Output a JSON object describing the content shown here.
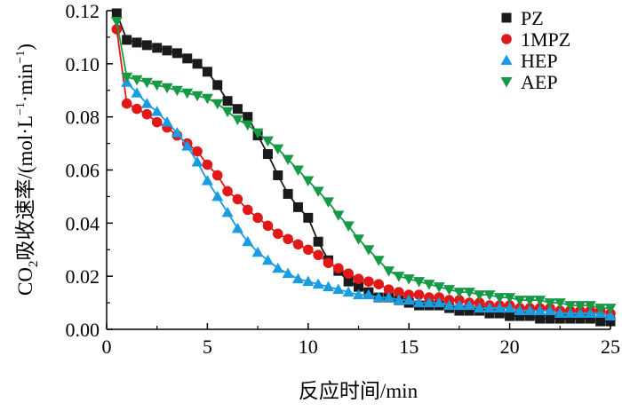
{
  "chart_data": {
    "type": "line",
    "title": "",
    "xlabel": "反应时间/min",
    "ylabel_main": "CO",
    "ylabel_sub": "2",
    "ylabel_rest": "吸收速率/(mol·L",
    "ylabel_sup1": "−1",
    "ylabel_mid": "·min",
    "ylabel_sup2": "−1",
    "ylabel_close": ")",
    "xlim": [
      0,
      25
    ],
    "ylim": [
      0,
      0.12
    ],
    "xticks": [
      0,
      5,
      10,
      15,
      20,
      25
    ],
    "xtick_labels": [
      "0",
      "5",
      "10",
      "15",
      "20",
      "25"
    ],
    "yticks": [
      0,
      0.02,
      0.04,
      0.06,
      0.08,
      0.1,
      0.12
    ],
    "ytick_labels": [
      "0.00",
      "0.02",
      "0.04",
      "0.06",
      "0.08",
      "0.10",
      "0.12"
    ],
    "legend_position": "top-right",
    "series": [
      {
        "name": "PZ",
        "color": "#1a1a1a",
        "marker": "square",
        "x": [
          0.5,
          1,
          1.5,
          2,
          2.5,
          3,
          3.5,
          4,
          4.5,
          5,
          5.5,
          6,
          6.5,
          7,
          7.5,
          8,
          8.5,
          9,
          9.5,
          10,
          10.5,
          11,
          11.5,
          12,
          12.5,
          13,
          13.5,
          14,
          14.5,
          15,
          15.5,
          16,
          16.5,
          17,
          17.5,
          18,
          18.5,
          19,
          19.5,
          20,
          20.5,
          21,
          21.5,
          22,
          22.5,
          23,
          23.5,
          24,
          24.5,
          25
        ],
        "y": [
          0.119,
          0.109,
          0.108,
          0.107,
          0.106,
          0.105,
          0.104,
          0.102,
          0.1,
          0.097,
          0.092,
          0.086,
          0.083,
          0.08,
          0.073,
          0.066,
          0.058,
          0.051,
          0.046,
          0.042,
          0.033,
          0.026,
          0.022,
          0.018,
          0.016,
          0.014,
          0.012,
          0.012,
          0.011,
          0.01,
          0.009,
          0.009,
          0.009,
          0.008,
          0.007,
          0.007,
          0.007,
          0.006,
          0.006,
          0.005,
          0.005,
          0.005,
          0.004,
          0.004,
          0.004,
          0.004,
          0.004,
          0.004,
          0.003,
          0.003
        ]
      },
      {
        "name": "1MPZ",
        "color": "#e01818",
        "marker": "circle",
        "x": [
          0.5,
          1,
          1.5,
          2,
          2.5,
          3,
          3.5,
          4,
          4.5,
          5,
          5.5,
          6,
          6.5,
          7,
          7.5,
          8,
          8.5,
          9,
          9.5,
          10,
          10.5,
          11,
          11.5,
          12,
          12.5,
          13,
          13.5,
          14,
          14.5,
          15,
          15.5,
          16,
          16.5,
          17,
          17.5,
          18,
          18.5,
          19,
          19.5,
          20,
          20.5,
          21,
          21.5,
          22,
          22.5,
          23,
          23.5,
          24,
          24.5,
          25
        ],
        "y": [
          0.113,
          0.085,
          0.083,
          0.081,
          0.078,
          0.076,
          0.073,
          0.07,
          0.067,
          0.062,
          0.058,
          0.052,
          0.049,
          0.045,
          0.042,
          0.039,
          0.036,
          0.034,
          0.032,
          0.03,
          0.028,
          0.025,
          0.023,
          0.021,
          0.019,
          0.018,
          0.017,
          0.015,
          0.014,
          0.013,
          0.013,
          0.012,
          0.012,
          0.011,
          0.011,
          0.01,
          0.01,
          0.009,
          0.009,
          0.009,
          0.008,
          0.008,
          0.008,
          0.008,
          0.007,
          0.007,
          0.007,
          0.007,
          0.007,
          0.006
        ]
      },
      {
        "name": "HEP",
        "color": "#1a9ce0",
        "marker": "triangle-up",
        "x": [
          1,
          1.5,
          2,
          2.5,
          3,
          3.5,
          4,
          4.5,
          5,
          5.5,
          6,
          6.5,
          7,
          7.5,
          8,
          8.5,
          9,
          9.5,
          10,
          10.5,
          11,
          11.5,
          12,
          12.5,
          13,
          13.5,
          14,
          14.5,
          15,
          15.5,
          16,
          16.5,
          17,
          17.5,
          18,
          18.5,
          19,
          19.5,
          20,
          20.5,
          21,
          21.5,
          22,
          22.5,
          23,
          23.5,
          24,
          24.5,
          25
        ],
        "y": [
          0.093,
          0.089,
          0.085,
          0.082,
          0.078,
          0.074,
          0.069,
          0.063,
          0.056,
          0.05,
          0.044,
          0.038,
          0.033,
          0.029,
          0.026,
          0.023,
          0.021,
          0.019,
          0.018,
          0.017,
          0.016,
          0.015,
          0.014,
          0.013,
          0.013,
          0.012,
          0.012,
          0.011,
          0.011,
          0.01,
          0.01,
          0.01,
          0.009,
          0.009,
          0.009,
          0.008,
          0.008,
          0.008,
          0.008,
          0.007,
          0.007,
          0.007,
          0.007,
          0.006,
          0.006,
          0.006,
          0.006,
          0.006,
          0.005
        ]
      },
      {
        "name": "AEP",
        "color": "#169a46",
        "marker": "triangle-down",
        "x": [
          0.5,
          1,
          1.5,
          2,
          2.5,
          3,
          3.5,
          4,
          4.5,
          5,
          5.5,
          6,
          6.5,
          7,
          7.5,
          8,
          8.5,
          9,
          9.5,
          10,
          10.5,
          11,
          11.5,
          12,
          12.5,
          13,
          13.5,
          14,
          14.5,
          15,
          15.5,
          16,
          16.5,
          17,
          17.5,
          18,
          18.5,
          19,
          19.5,
          20,
          20.5,
          21,
          21.5,
          22,
          22.5,
          23,
          23.5,
          24,
          24.5,
          25
        ],
        "y": [
          0.116,
          0.095,
          0.094,
          0.093,
          0.092,
          0.091,
          0.09,
          0.089,
          0.088,
          0.087,
          0.085,
          0.082,
          0.079,
          0.077,
          0.074,
          0.071,
          0.068,
          0.064,
          0.06,
          0.056,
          0.052,
          0.048,
          0.043,
          0.039,
          0.034,
          0.03,
          0.026,
          0.022,
          0.02,
          0.019,
          0.018,
          0.017,
          0.016,
          0.015,
          0.014,
          0.014,
          0.013,
          0.013,
          0.012,
          0.012,
          0.011,
          0.011,
          0.011,
          0.01,
          0.01,
          0.009,
          0.009,
          0.009,
          0.008,
          0.008
        ]
      }
    ]
  }
}
